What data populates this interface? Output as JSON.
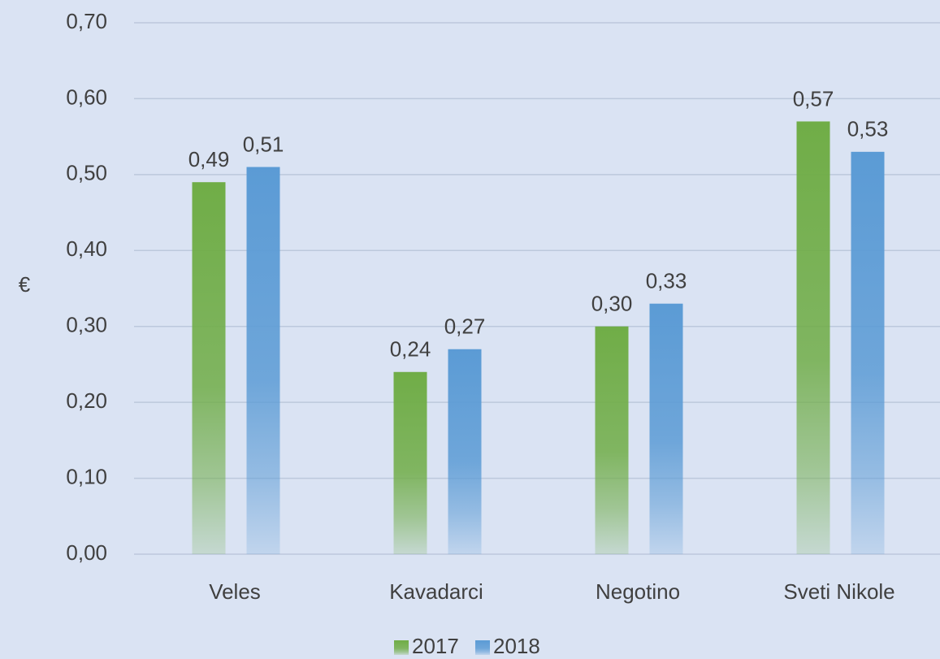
{
  "chart_data": {
    "type": "bar",
    "y_label": "€",
    "categories": [
      "Veles",
      "Kavadarci",
      "Negotino",
      "Sveti Nikole"
    ],
    "series": [
      {
        "name": "2017",
        "color": "#70ad47",
        "values": [
          0.49,
          0.24,
          0.3,
          0.57
        ],
        "value_labels": [
          "0,49",
          "0,24",
          "0,30",
          "0,57"
        ]
      },
      {
        "name": "2018",
        "color": "#5b9bd5",
        "values": [
          0.51,
          0.27,
          0.33,
          0.53
        ],
        "value_labels": [
          "0,51",
          "0,27",
          "0,33",
          "0,53"
        ]
      }
    ],
    "ylim": [
      0,
      0.7
    ],
    "yticks": [
      {
        "value": 0,
        "label": "0,00"
      },
      {
        "value": 0.1,
        "label": "0,10"
      },
      {
        "value": 0.2,
        "label": "0,20"
      },
      {
        "value": 0.3,
        "label": "0,30"
      },
      {
        "value": 0.4,
        "label": "0,40"
      },
      {
        "value": 0.5,
        "label": "0,50"
      },
      {
        "value": 0.6,
        "label": "0,60"
      },
      {
        "value": 0.7,
        "label": "0,70"
      }
    ],
    "grid": true,
    "legend": "bottom"
  }
}
